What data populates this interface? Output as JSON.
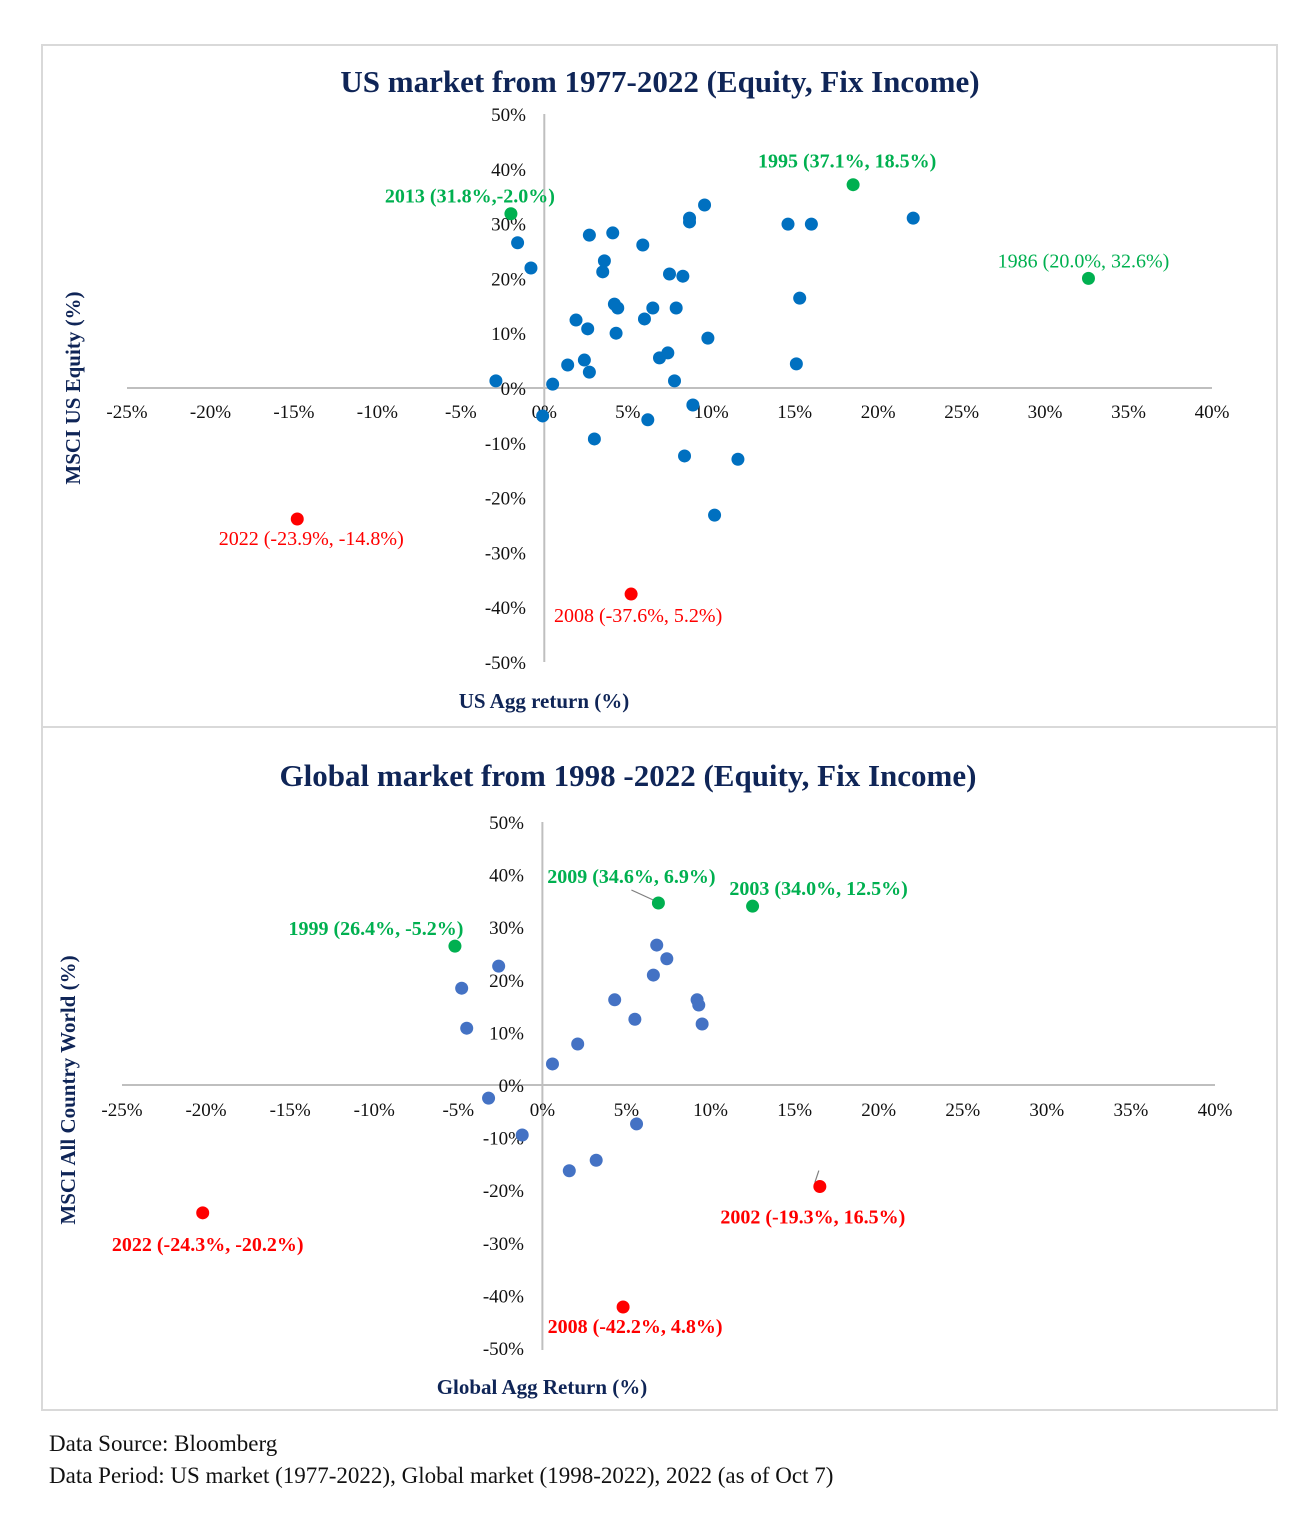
{
  "colors": {
    "us_point": "#0070C0",
    "global_point": "#4472C4",
    "highlight_green": "#00B050",
    "highlight_red": "#FF0000",
    "title": "#0F2557",
    "axis": "#BFBFBF"
  },
  "chart_data": [
    {
      "type": "scatter",
      "title": "US market from 1977-2022 (Equity, Fix Income)",
      "xlabel": "US Agg return (%)",
      "ylabel": "MSCI US Equity (%)",
      "xlim": [
        -25,
        40
      ],
      "ylim": [
        -50,
        50
      ],
      "x_ticks": [
        "-25%",
        "-20%",
        "-15%",
        "-10%",
        "-5%",
        "0%",
        "5%",
        "10%",
        "15%",
        "20%",
        "25%",
        "30%",
        "35%",
        "40%"
      ],
      "y_ticks": [
        "50%",
        "40%",
        "30%",
        "20%",
        "10%",
        "0%",
        "-10%",
        "-20%",
        "-30%",
        "-40%",
        "-50%"
      ],
      "grid": false,
      "legend": "none",
      "points": [
        [
          -2.9,
          1.3
        ],
        [
          -1.6,
          26.5
        ],
        [
          -0.8,
          21.9
        ],
        [
          -0.1,
          -5.1
        ],
        [
          0.5,
          0.7
        ],
        [
          1.4,
          4.2
        ],
        [
          1.9,
          12.4
        ],
        [
          2.4,
          5.1
        ],
        [
          2.6,
          10.8
        ],
        [
          2.7,
          2.9
        ],
        [
          2.7,
          27.9
        ],
        [
          3.0,
          -9.3
        ],
        [
          3.6,
          23.2
        ],
        [
          3.5,
          21.2
        ],
        [
          4.1,
          28.3
        ],
        [
          4.2,
          15.3
        ],
        [
          4.4,
          14.6
        ],
        [
          4.3,
          10.0
        ],
        [
          5.9,
          26.1
        ],
        [
          6.0,
          12.6
        ],
        [
          6.2,
          -5.8
        ],
        [
          6.5,
          14.6
        ],
        [
          6.9,
          5.5
        ],
        [
          7.4,
          6.4
        ],
        [
          7.5,
          20.8
        ],
        [
          7.8,
          1.3
        ],
        [
          7.9,
          14.6
        ],
        [
          8.3,
          20.4
        ],
        [
          8.4,
          -12.4
        ],
        [
          8.7,
          31.0
        ],
        [
          8.7,
          30.3
        ],
        [
          8.9,
          -3.1
        ],
        [
          9.6,
          33.4
        ],
        [
          9.8,
          9.1
        ],
        [
          10.2,
          -23.2
        ],
        [
          11.6,
          -13.0
        ],
        [
          14.6,
          29.9
        ],
        [
          15.1,
          4.4
        ],
        [
          15.3,
          16.4
        ],
        [
          16.0,
          29.9
        ],
        [
          22.1,
          31.0
        ]
      ],
      "highlights": [
        {
          "x": 18.5,
          "y": 37.1,
          "label": "1995 (37.1%, 18.5%)",
          "color": "green",
          "bold": true
        },
        {
          "x": -2.0,
          "y": 31.8,
          "label": "2013 (31.8%,-2.0%)",
          "color": "green",
          "bold": true
        },
        {
          "x": 32.6,
          "y": 20.0,
          "label": "1986 (20.0%, 32.6%)",
          "color": "green",
          "bold": false
        },
        {
          "x": -14.8,
          "y": -23.9,
          "label": "2022 (-23.9%, -14.8%)",
          "color": "red",
          "bold": false
        },
        {
          "x": 5.2,
          "y": -37.6,
          "label": "2008 (-37.6%, 5.2%)",
          "color": "red",
          "bold": false
        }
      ]
    },
    {
      "type": "scatter",
      "title": "Global market from 1998 -2022 (Equity, Fix Income)",
      "xlabel": "Global Agg Return (%)",
      "ylabel": "MSCI All Country World (%)",
      "xlim": [
        -25,
        40
      ],
      "ylim": [
        -50,
        50
      ],
      "x_ticks": [
        "-25%",
        "-20%",
        "-15%",
        "-10%",
        "-5%",
        "0%",
        "5%",
        "10%",
        "15%",
        "20%",
        "25%",
        "30%",
        "35%",
        "40%"
      ],
      "y_ticks": [
        "50%",
        "40%",
        "30%",
        "20%",
        "10%",
        "0%",
        "-10%",
        "-20%",
        "-30%",
        "-40%",
        "-50%"
      ],
      "grid": false,
      "legend": "none",
      "points": [
        [
          -2.6,
          22.6
        ],
        [
          -4.8,
          18.4
        ],
        [
          -4.5,
          10.8
        ],
        [
          -3.2,
          -2.5
        ],
        [
          -1.2,
          -9.5
        ],
        [
          0.6,
          4.0
        ],
        [
          2.1,
          7.8
        ],
        [
          1.6,
          -16.3
        ],
        [
          3.2,
          -14.3
        ],
        [
          4.3,
          16.2
        ],
        [
          5.5,
          12.5
        ],
        [
          5.6,
          -7.4
        ],
        [
          6.6,
          20.9
        ],
        [
          6.8,
          26.6
        ],
        [
          7.4,
          24.0
        ],
        [
          9.2,
          16.2
        ],
        [
          9.3,
          15.2
        ],
        [
          9.5,
          11.6
        ]
      ],
      "highlights": [
        {
          "x": 6.9,
          "y": 34.6,
          "label": "2009 (34.6%, 6.9%)",
          "color": "green",
          "bold": true
        },
        {
          "x": 12.5,
          "y": 34.0,
          "label": "2003 (34.0%, 12.5%)",
          "color": "green",
          "bold": true
        },
        {
          "x": -5.2,
          "y": 26.4,
          "label": "1999 (26.4%, -5.2%)",
          "color": "green",
          "bold": true
        },
        {
          "x": 16.5,
          "y": -19.3,
          "label": "2002 (-19.3%, 16.5%)",
          "color": "red",
          "bold": true
        },
        {
          "x": -20.2,
          "y": -24.3,
          "label": "2022 (-24.3%, -20.2%)",
          "color": "red",
          "bold": true
        },
        {
          "x": 4.8,
          "y": -42.2,
          "label": "2008 (-42.2%, 4.8%)",
          "color": "red",
          "bold": true
        }
      ]
    }
  ],
  "footer": {
    "source": "Data Source: Bloomberg",
    "period": "Data Period: US market (1977-2022), Global market (1998-2022), 2022 (as of Oct 7)"
  }
}
